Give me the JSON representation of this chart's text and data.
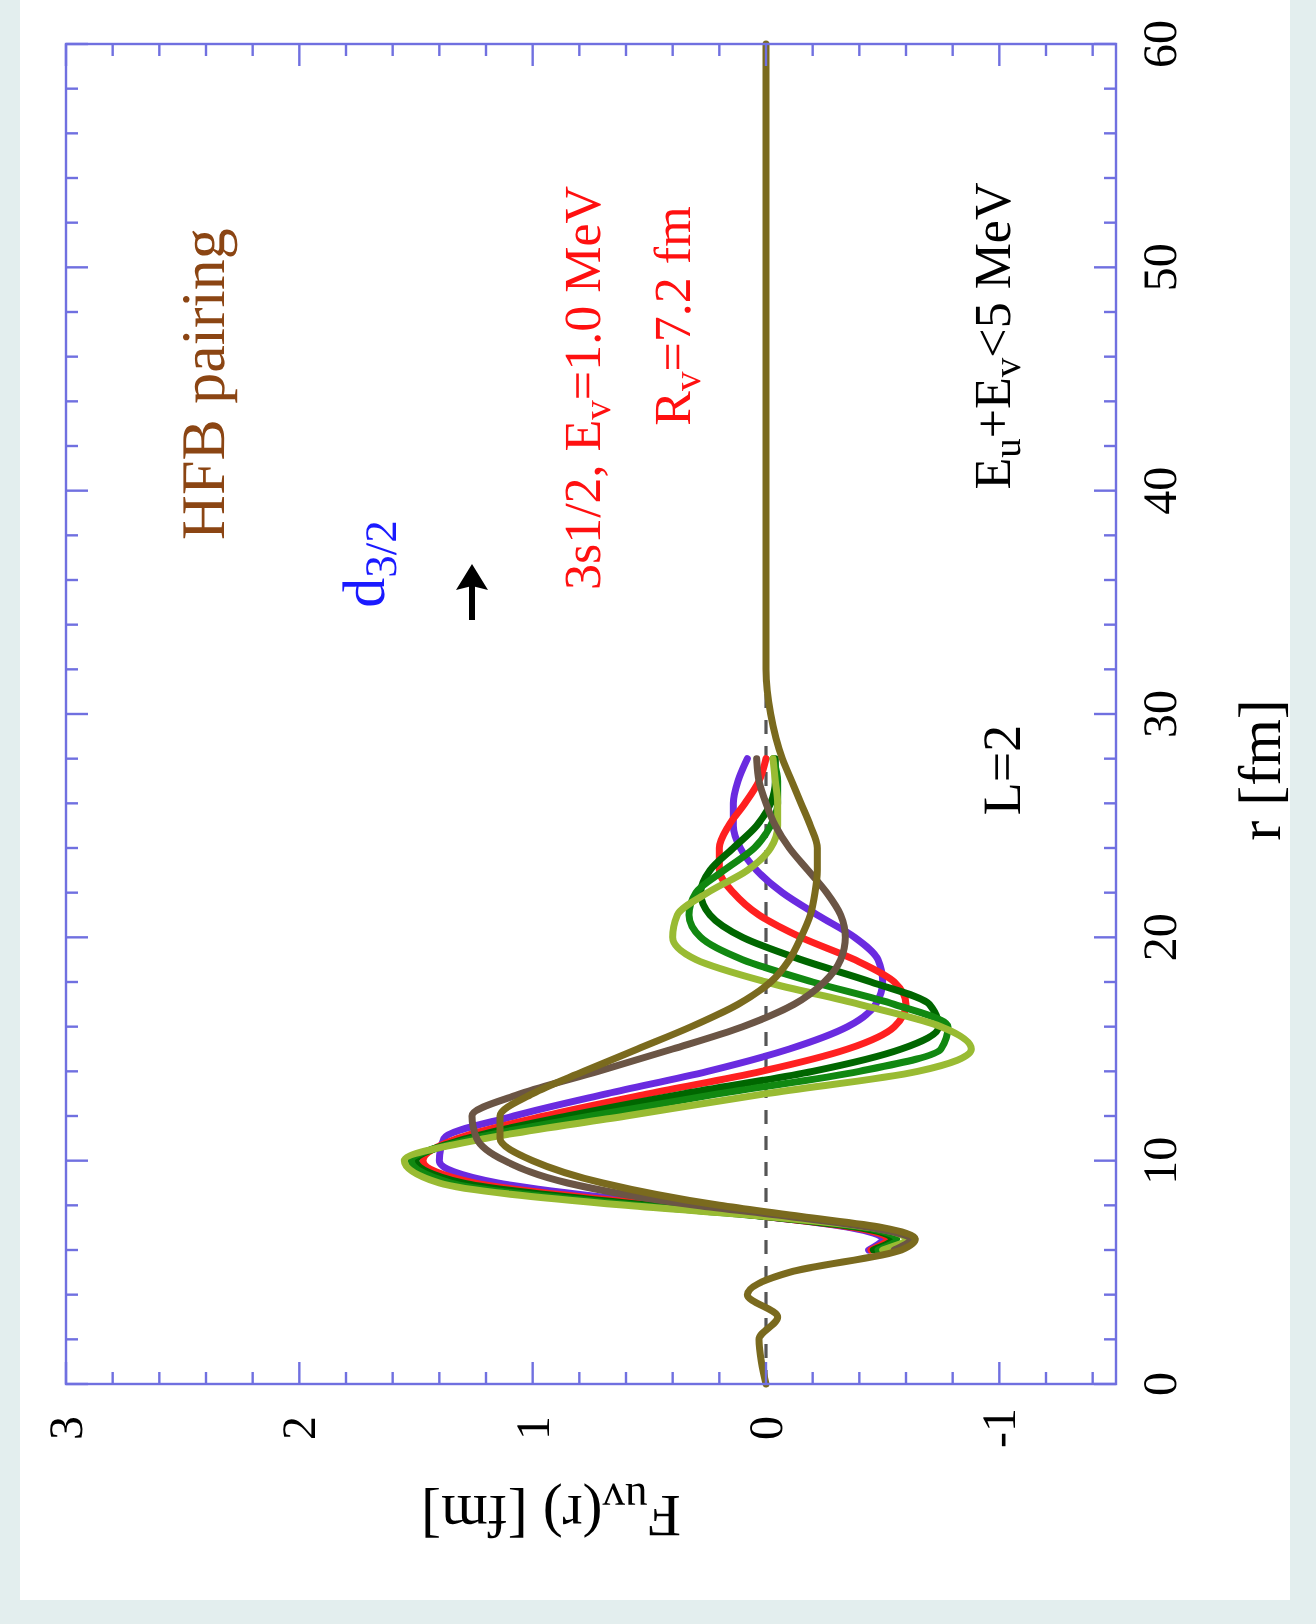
{
  "chart_data": {
    "type": "line",
    "xlabel": "F$_{uv}$(r)  [fm]",
    "ylabel": "r  [fm]",
    "series": [
      {
        "color": "#6a2be0",
        "values": [
          null,
          null,
          null,
          null,
          null,
          null,
          6,
          6.5,
          7,
          7.5,
          8,
          9,
          10,
          11,
          12,
          13,
          14,
          15,
          16,
          17,
          18,
          19,
          20,
          21,
          22,
          23,
          24,
          25,
          26,
          27,
          28,
          null,
          null,
          null,
          null,
          null,
          null
        ],
        "x": [
          null,
          null,
          null,
          null,
          null,
          null,
          -0.44,
          -0.5,
          -0.36,
          0,
          0.4,
          1.15,
          1.4,
          1.38,
          1.08,
          0.68,
          0.25,
          -0.1,
          -0.35,
          -0.47,
          -0.5,
          -0.48,
          -0.38,
          -0.22,
          -0.07,
          0.04,
          0.11,
          0.14,
          0.14,
          0.12,
          0.08,
          null,
          null,
          null,
          null,
          null,
          null
        ]
      },
      {
        "color": "#ff2020",
        "values": [
          null,
          null,
          null,
          null,
          null,
          null,
          6,
          6.5,
          7,
          7.5,
          8,
          9,
          10,
          11,
          12,
          13,
          14,
          15,
          16,
          17,
          18,
          19,
          20,
          21,
          22,
          23,
          24,
          25,
          26,
          27,
          28,
          null,
          null,
          null,
          null,
          null,
          null
        ],
        "x": [
          null,
          null,
          null,
          null,
          null,
          null,
          -0.45,
          -0.52,
          -0.38,
          0,
          0.45,
          1.25,
          1.47,
          1.32,
          0.95,
          0.5,
          0.02,
          -0.35,
          -0.55,
          -0.6,
          -0.55,
          -0.38,
          -0.15,
          0.03,
          0.14,
          0.2,
          0.2,
          0.16,
          0.09,
          0.03,
          0,
          null,
          null,
          null,
          null,
          null,
          null
        ]
      },
      {
        "color": "#006600",
        "values": [
          null,
          null,
          null,
          null,
          null,
          null,
          6,
          6.5,
          7,
          7.5,
          8,
          9,
          10,
          11,
          12,
          13,
          14,
          15,
          16,
          17,
          18,
          19,
          20,
          21,
          22,
          23,
          24,
          25,
          26,
          27,
          28,
          null,
          null,
          null,
          null,
          null,
          null
        ],
        "x": [
          null,
          null,
          null,
          null,
          null,
          null,
          -0.46,
          -0.54,
          -0.4,
          0,
          0.5,
          1.3,
          1.5,
          1.28,
          0.85,
          0.35,
          -0.2,
          -0.58,
          -0.74,
          -0.7,
          -0.45,
          -0.15,
          0.1,
          0.24,
          0.28,
          0.24,
          0.14,
          0.04,
          -0.02,
          -0.04,
          -0.04,
          null,
          null,
          null,
          null,
          null,
          null
        ]
      },
      {
        "color": "#118811",
        "values": [
          null,
          null,
          null,
          null,
          null,
          null,
          6,
          6.5,
          7,
          7.5,
          8,
          9,
          10,
          11,
          12,
          13,
          14,
          15,
          16,
          17,
          18,
          19,
          20,
          21,
          22,
          23,
          24,
          25,
          26,
          27,
          28,
          null,
          null,
          null,
          null,
          null,
          null
        ],
        "x": [
          null,
          null,
          null,
          null,
          null,
          null,
          -0.48,
          -0.56,
          -0.42,
          0,
          0.55,
          1.35,
          1.52,
          1.25,
          0.75,
          0.2,
          -0.4,
          -0.75,
          -0.78,
          -0.55,
          -0.2,
          0.1,
          0.28,
          0.33,
          0.3,
          0.18,
          0.05,
          -0.02,
          -0.05,
          -0.05,
          -0.03,
          null,
          null,
          null,
          null,
          null,
          null
        ]
      },
      {
        "color": "#99bb33",
        "values": [
          null,
          null,
          null,
          null,
          null,
          null,
          6,
          6.5,
          7,
          7.5,
          8,
          9,
          10,
          11,
          12,
          13,
          14,
          15,
          16,
          17,
          18,
          19,
          20,
          21,
          22,
          23,
          24,
          25,
          26,
          27,
          28,
          null,
          null,
          null,
          null,
          null,
          null
        ],
        "x": [
          null,
          null,
          null,
          null,
          null,
          null,
          -0.5,
          -0.6,
          -0.45,
          0,
          0.6,
          1.4,
          1.55,
          1.2,
          0.6,
          0,
          -0.65,
          -0.88,
          -0.75,
          -0.4,
          0,
          0.3,
          0.4,
          0.38,
          0.25,
          0.08,
          -0.02,
          -0.05,
          -0.05,
          -0.04,
          -0.03,
          null,
          null,
          null,
          null,
          null,
          null
        ]
      },
      {
        "color": "#6b5545",
        "values": [
          null,
          null,
          null,
          null,
          null,
          null,
          6,
          6.5,
          7,
          7.5,
          8,
          9,
          10,
          11,
          12,
          13,
          14,
          15,
          16,
          17,
          18,
          19,
          20,
          21,
          22,
          23,
          24,
          25,
          26,
          27,
          28,
          null,
          null,
          null,
          null,
          null,
          null
        ],
        "x": [
          null,
          null,
          null,
          null,
          null,
          null,
          -0.55,
          -0.62,
          -0.45,
          -0.1,
          0.3,
          0.85,
          1.12,
          1.24,
          1.26,
          1.05,
          0.72,
          0.4,
          0.1,
          -0.12,
          -0.25,
          -0.32,
          -0.34,
          -0.32,
          -0.26,
          -0.18,
          -0.1,
          -0.04,
          0,
          0.03,
          0.04,
          null,
          null,
          null,
          null,
          null,
          null
        ]
      },
      {
        "color": "#7a6a1e",
        "values": [
          0,
          1,
          2,
          3,
          4,
          5,
          6,
          6.5,
          7,
          7.5,
          8,
          9,
          10,
          11,
          12,
          13,
          14,
          15,
          16,
          17,
          18,
          19,
          20,
          21,
          22,
          23,
          24,
          25,
          26,
          27,
          28,
          30,
          32,
          35,
          40,
          50,
          60
        ],
        "x": [
          0,
          0.02,
          0.03,
          -0.05,
          0.08,
          -0.1,
          -0.58,
          -0.64,
          -0.5,
          -0.15,
          0.2,
          0.7,
          1.0,
          1.14,
          1.14,
          1.0,
          0.78,
          0.55,
          0.32,
          0.12,
          -0.02,
          -0.1,
          -0.15,
          -0.19,
          -0.21,
          -0.22,
          -0.22,
          -0.19,
          -0.15,
          -0.11,
          -0.07,
          -0.02,
          0,
          0,
          0,
          0,
          0
        ]
      }
    ],
    "xlim": [
      3,
      -1.5
    ],
    "ylim": [
      0,
      60
    ],
    "yticks": [
      0,
      {
        "value": 2,
        "label": null
      },
      {
        "value": 4,
        "label": null
      },
      {
        "value": 6,
        "label": null
      },
      {
        "value": 8,
        "label": null
      },
      10,
      {
        "value": 12,
        "label": null
      },
      {
        "value": 14,
        "label": null
      },
      {
        "value": 16,
        "label": null
      },
      {
        "value": 18,
        "label": null
      },
      20,
      {
        "value": 22,
        "label": null
      },
      {
        "value": 24,
        "label": null
      },
      {
        "value": 26,
        "label": null
      },
      {
        "value": 28,
        "label": null
      },
      30,
      {
        "value": 32,
        "label": null
      },
      {
        "value": 34,
        "label": null
      },
      {
        "value": 36,
        "label": null
      },
      {
        "value": 38,
        "label": null
      },
      40,
      {
        "value": 42,
        "label": null
      },
      {
        "value": 44,
        "label": null
      },
      {
        "value": 46,
        "label": null
      },
      {
        "value": 48,
        "label": null
      },
      50,
      {
        "value": 52,
        "label": null
      },
      {
        "value": 54,
        "label": null
      },
      {
        "value": 56,
        "label": null
      },
      {
        "value": 58,
        "label": null
      },
      60
    ],
    "xticks": [
      {
        "value": -1.4,
        "label": null
      },
      {
        "value": -1.2,
        "label": null
      },
      -1,
      {
        "value": -0.8,
        "label": null
      },
      {
        "value": -0.6,
        "label": null
      },
      {
        "value": -0.4,
        "label": null
      },
      {
        "value": -0.2,
        "label": null
      },
      0,
      {
        "value": 0.2,
        "label": null
      },
      {
        "value": 0.4,
        "label": null
      },
      {
        "value": 0.6,
        "label": null
      },
      {
        "value": 0.8,
        "label": null
      },
      1,
      {
        "value": 1.2,
        "label": null
      },
      {
        "value": 1.4,
        "label": null
      },
      {
        "value": 1.6,
        "label": null
      },
      {
        "value": 1.8,
        "label": null
      },
      2,
      {
        "value": 2.2,
        "label": null
      },
      {
        "value": 2.4,
        "label": null
      },
      {
        "value": 2.6,
        "label": null
      },
      {
        "value": 2.8,
        "label": null
      },
      3
    ],
    "ref_lines": [
      {
        "axis": "x",
        "value": 0,
        "color": "#555555",
        "line_style": "dashed"
      }
    ],
    "annotations": [
      "HFB pairing",
      "d$_{3/2}$",
      "3s1/2, E$_{v}$=1.0 MeV",
      "R$_{v}$=7.2 fm",
      "L=2",
      "E$_{u}$+E$_{v}$<5 MeV"
    ],
    "grid": false
  }
}
